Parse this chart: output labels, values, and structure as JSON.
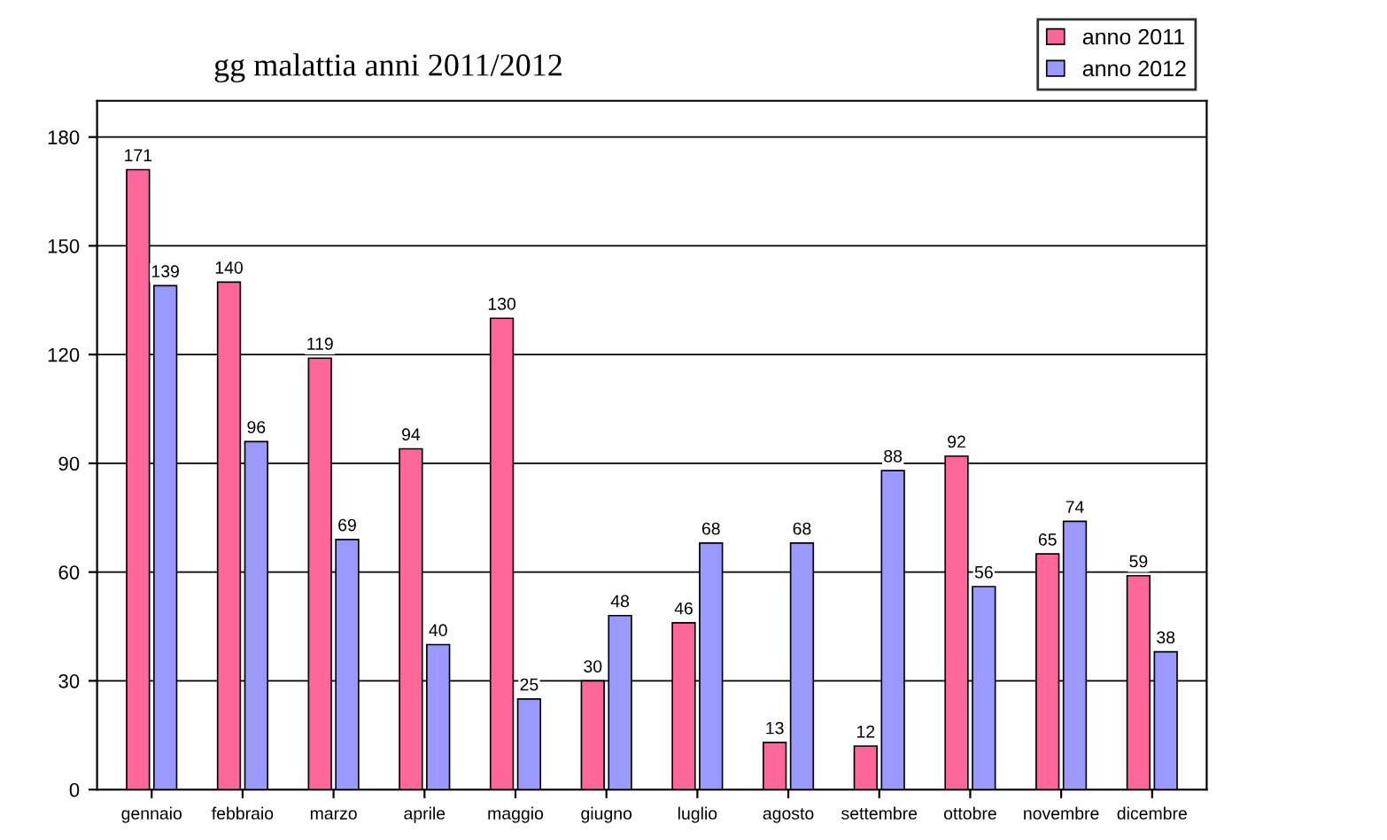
{
  "chart_data": {
    "type": "bar",
    "title": "gg malattia anni 2011/2012",
    "categories": [
      "gennaio",
      "febbraio",
      "marzo",
      "aprile",
      "maggio",
      "giugno",
      "luglio",
      "agosto",
      "settembre",
      "ottobre",
      "novembre",
      "dicembre"
    ],
    "series": [
      {
        "name": "anno 2011",
        "color": "#ff6699",
        "values": [
          171,
          140,
          119,
          94,
          130,
          30,
          46,
          13,
          12,
          92,
          65,
          59
        ]
      },
      {
        "name": "anno 2012",
        "color": "#9999ff",
        "values": [
          139,
          96,
          69,
          40,
          25,
          48,
          68,
          68,
          88,
          56,
          74,
          38
        ]
      }
    ],
    "ylim": [
      0,
      190
    ],
    "yticks": [
      0,
      30,
      60,
      90,
      120,
      150,
      180
    ],
    "grid": "y",
    "legend": "top right",
    "data_labels": true
  }
}
